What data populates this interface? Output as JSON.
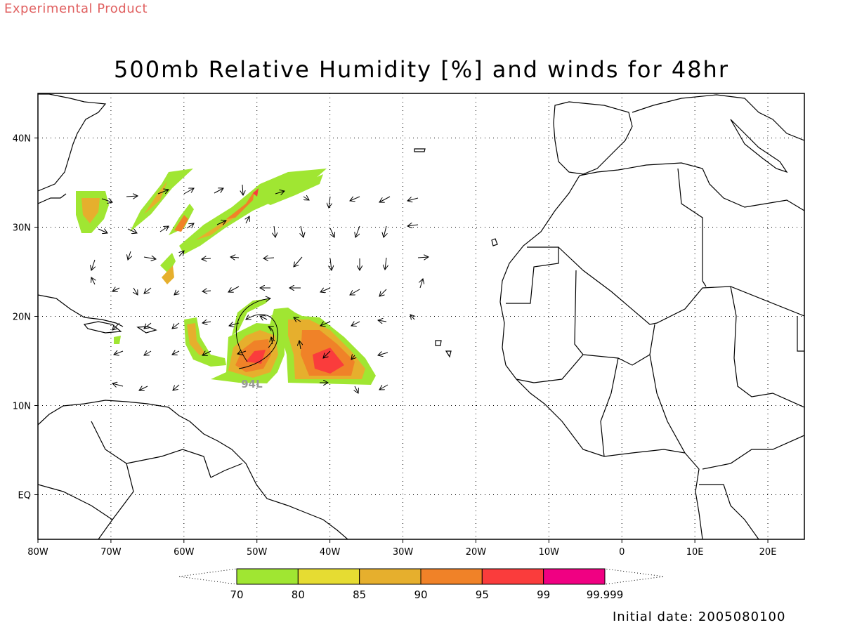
{
  "header": {
    "experimental_label": "Experimental Product",
    "title": "500mb Relative Humidity [%] and winds for 48hr"
  },
  "map": {
    "lon_range": [
      -80,
      25
    ],
    "lat_range": [
      -5,
      45
    ],
    "lon_labels": [
      {
        "lon": -80,
        "text": "80W"
      },
      {
        "lon": -70,
        "text": "70W"
      },
      {
        "lon": -60,
        "text": "60W"
      },
      {
        "lon": -50,
        "text": "50W"
      },
      {
        "lon": -40,
        "text": "40W"
      },
      {
        "lon": -30,
        "text": "30W"
      },
      {
        "lon": -20,
        "text": "20W"
      },
      {
        "lon": -10,
        "text": "10W"
      },
      {
        "lon": 0,
        "text": "0"
      },
      {
        "lon": 10,
        "text": "10E"
      },
      {
        "lon": 20,
        "text": "20E"
      }
    ],
    "lat_labels": [
      {
        "lat": 40,
        "text": "40N"
      },
      {
        "lat": 30,
        "text": "30N"
      },
      {
        "lat": 20,
        "text": "20N"
      },
      {
        "lat": 10,
        "text": "10N"
      },
      {
        "lat": 0,
        "text": "EQ"
      }
    ],
    "storm_label": {
      "text": "94L",
      "lon": -50.7,
      "lat": 12.0,
      "color": "#999999"
    }
  },
  "legend": {
    "levels": [
      "70",
      "80",
      "85",
      "90",
      "95",
      "99",
      "99.999"
    ],
    "colors": [
      "#a0e632",
      "#e6dc32",
      "#e6af2d",
      "#f08228",
      "#fa3c3c",
      "#f00082"
    ]
  },
  "footer": {
    "initial_date": "Initial date: 2005080100"
  },
  "colors": {
    "rh_70": "#a0e632",
    "rh_80": "#e6dc32",
    "rh_85": "#e6af2d",
    "rh_90": "#f08228",
    "rh_95": "#fa3c3c",
    "rh_99": "#f00082"
  }
}
